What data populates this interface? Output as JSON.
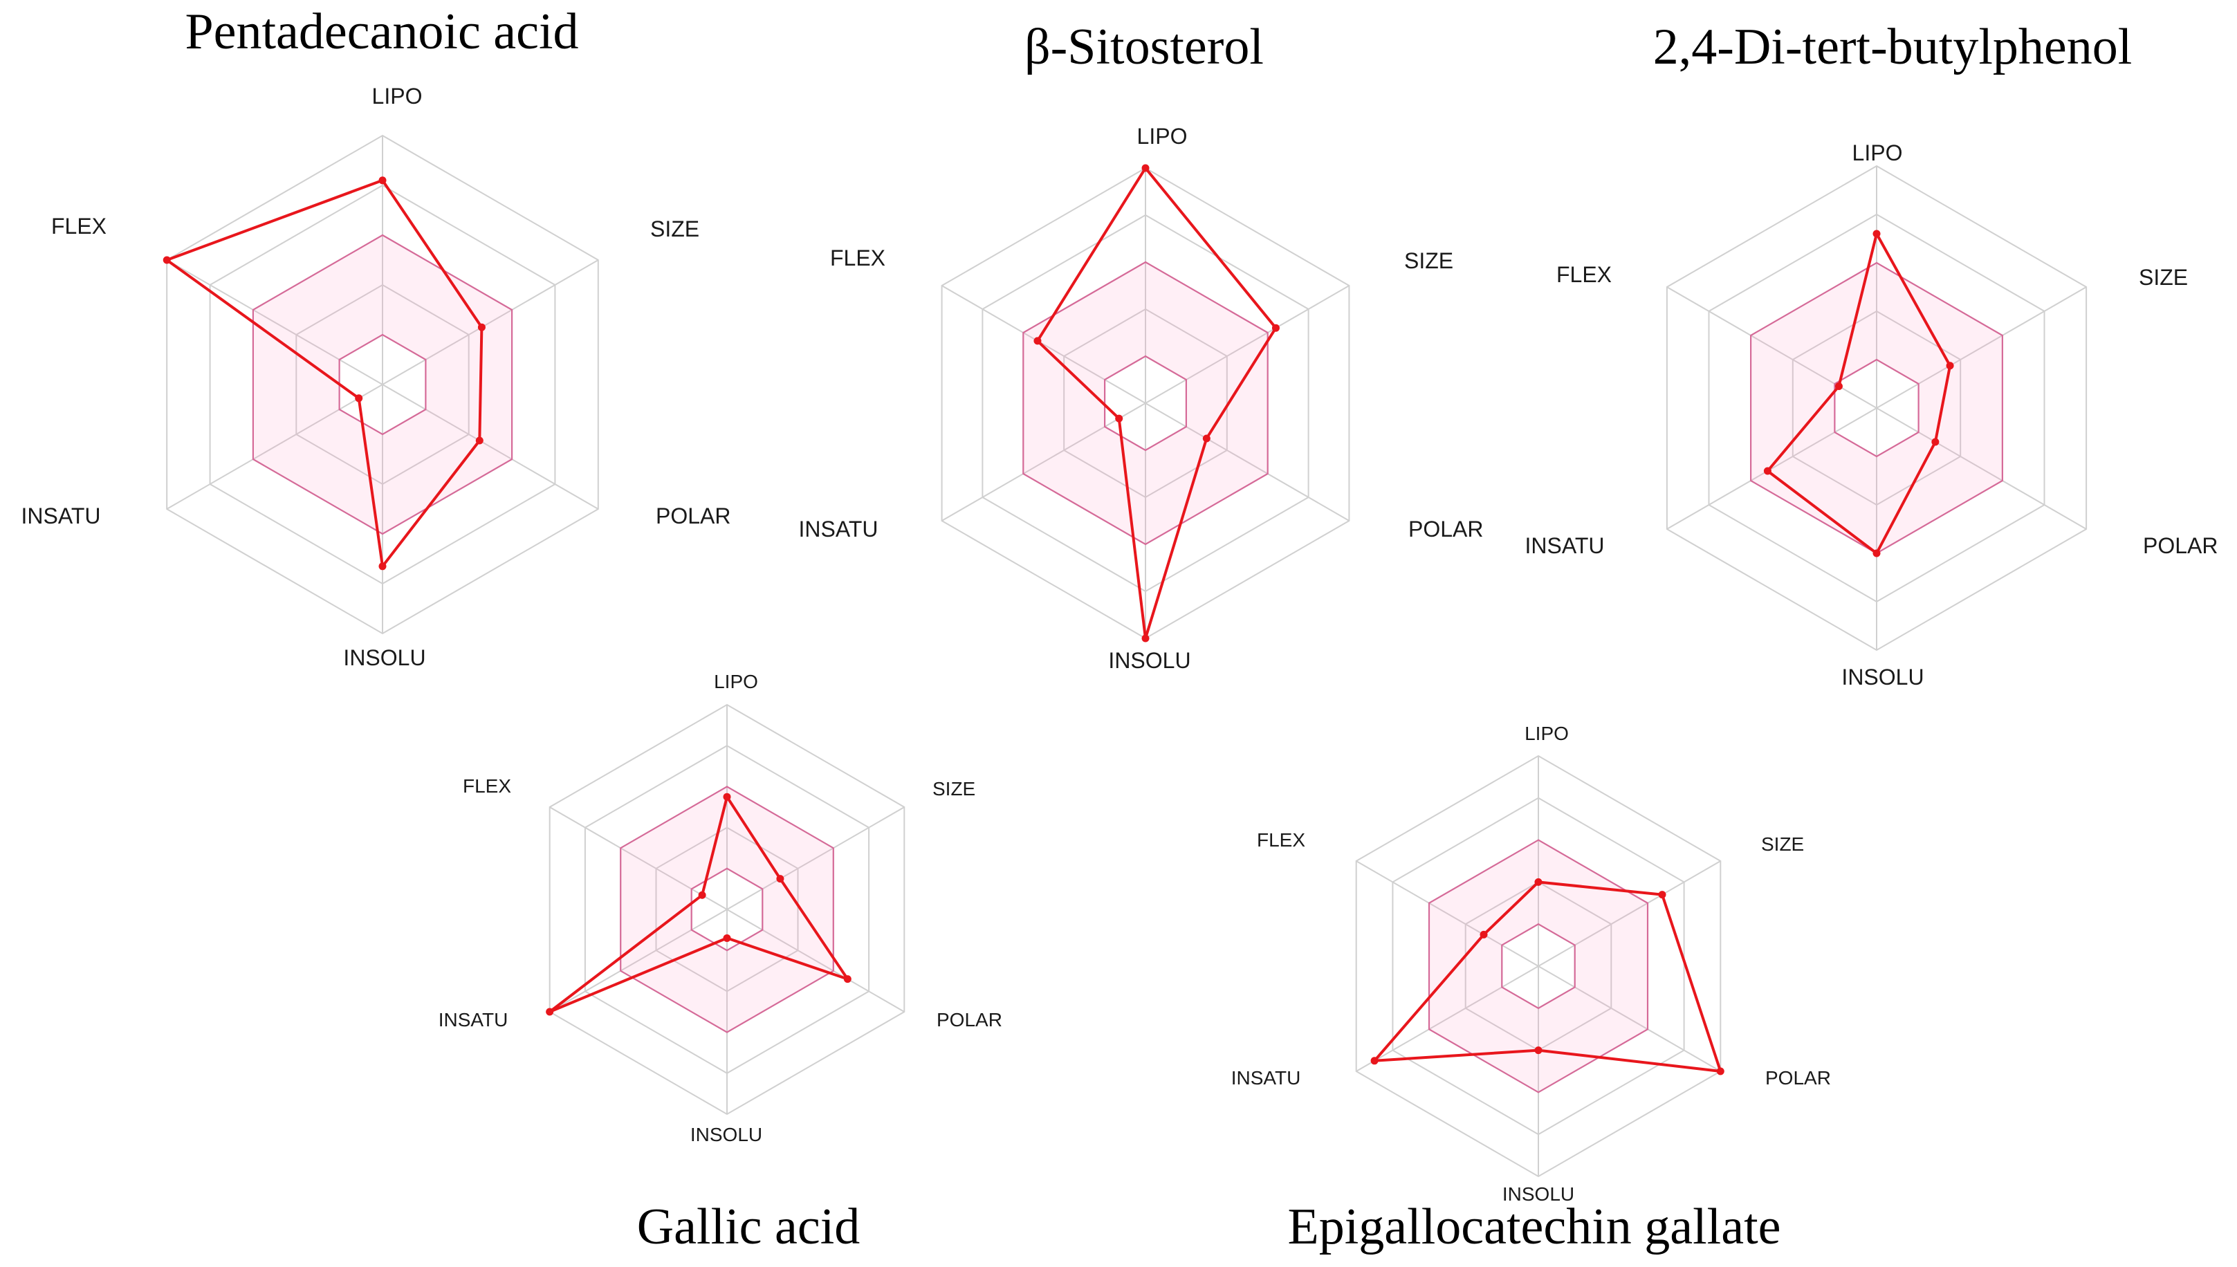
{
  "chart_data": [
    {
      "type": "radar",
      "title": "Pentadecanoic acid",
      "axes": [
        "LIPO",
        "SIZE",
        "POLAR",
        "INSOLU",
        "INSATU",
        "FLEX"
      ],
      "values": [
        0.82,
        0.46,
        0.45,
        0.73,
        0.11,
        1.0
      ],
      "range": [
        0,
        1
      ],
      "optimal_range": [
        0.2,
        0.6
      ]
    },
    {
      "type": "radar",
      "title": "β-Sitosterol",
      "axes": [
        "LIPO",
        "SIZE",
        "POLAR",
        "INSOLU",
        "INSATU",
        "FLEX"
      ],
      "values": [
        1.0,
        0.64,
        0.3,
        1.0,
        0.13,
        0.53
      ],
      "range": [
        0,
        1
      ],
      "optimal_range": [
        0.2,
        0.6
      ]
    },
    {
      "type": "radar",
      "title": "2,4-Di-tert-butylphenol",
      "axes": [
        "LIPO",
        "SIZE",
        "POLAR",
        "INSOLU",
        "INSATU",
        "FLEX"
      ],
      "values": [
        0.72,
        0.35,
        0.28,
        0.6,
        0.52,
        0.18
      ],
      "range": [
        0,
        1
      ],
      "optimal_range": [
        0.2,
        0.6
      ]
    },
    {
      "type": "radar",
      "title": "Gallic acid",
      "axes": [
        "LIPO",
        "SIZE",
        "POLAR",
        "INSOLU",
        "INSATU",
        "FLEX"
      ],
      "values": [
        0.55,
        0.3,
        0.68,
        0.14,
        1.0,
        0.14
      ],
      "range": [
        0,
        1
      ],
      "optimal_range": [
        0.2,
        0.6
      ]
    },
    {
      "type": "radar",
      "title": "Epigallocatechin gallate",
      "axes": [
        "LIPO",
        "SIZE",
        "POLAR",
        "INSOLU",
        "INSATU",
        "FLEX"
      ],
      "values": [
        0.4,
        0.68,
        1.0,
        0.4,
        0.9,
        0.3
      ],
      "range": [
        0,
        1
      ],
      "optimal_range": [
        0.2,
        0.6
      ]
    }
  ],
  "colors": {
    "series": "#e8161c",
    "optimal_fill": "#ff9ec7",
    "optimal_stroke": "#d64a86",
    "grid": "#d0d0d0"
  }
}
